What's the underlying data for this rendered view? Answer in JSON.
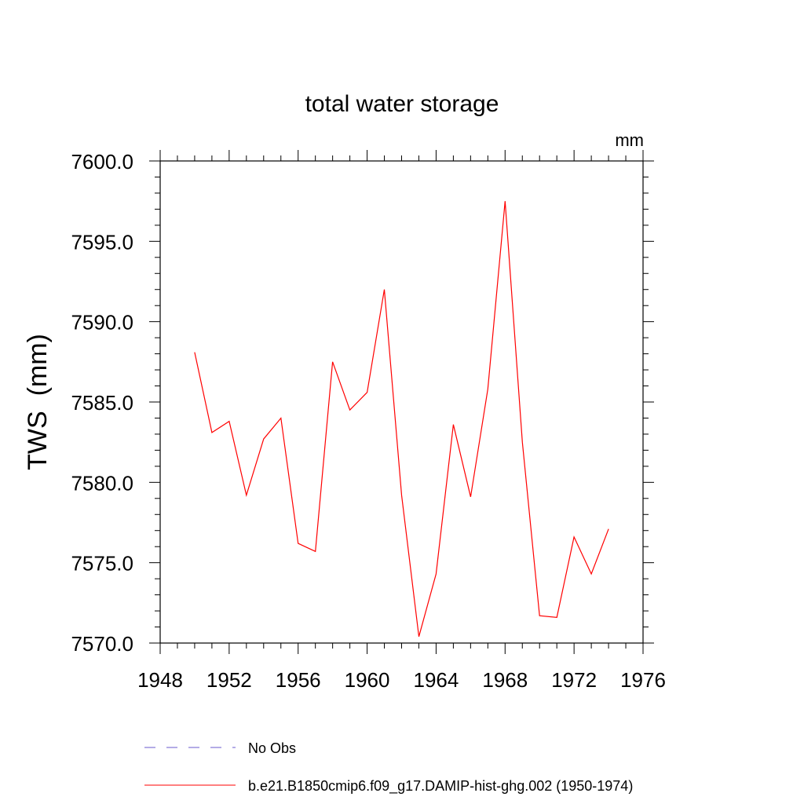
{
  "chart_data": {
    "type": "line",
    "title": "total water storage",
    "units_label": "mm",
    "ylabel": "TWS  (mm)",
    "xlabel": "",
    "xlim": [
      1948,
      1976
    ],
    "ylim": [
      7570.0,
      7600.0
    ],
    "xticks": [
      "1948",
      "1952",
      "1956",
      "1960",
      "1964",
      "1968",
      "1972",
      "1976"
    ],
    "yticks": [
      "7570.0",
      "7575.0",
      "7580.0",
      "7585.0",
      "7590.0",
      "7595.0",
      "7600.0"
    ],
    "grid": false,
    "legend_position": "bottom",
    "series": [
      {
        "name": "No Obs",
        "color": "#6a5acd",
        "dash": "dashed",
        "x": [],
        "y": []
      },
      {
        "name": "b.e21.B1850cmip6.f09_g17.DAMIP-hist-ghg.002 (1950-1974)",
        "color": "#ff0000",
        "dash": "solid",
        "x": [
          1950,
          1951,
          1952,
          1953,
          1954,
          1955,
          1956,
          1957,
          1958,
          1959,
          1960,
          1961,
          1962,
          1963,
          1964,
          1965,
          1966,
          1967,
          1968,
          1969,
          1970,
          1971,
          1972,
          1973,
          1974
        ],
        "y": [
          7588.1,
          7583.1,
          7583.8,
          7579.2,
          7582.7,
          7584.0,
          7576.2,
          7575.7,
          7587.5,
          7584.5,
          7585.6,
          7592.0,
          7579.2,
          7570.4,
          7574.3,
          7583.6,
          7579.1,
          7585.8,
          7597.5,
          7582.5,
          7571.7,
          7571.6,
          7576.6,
          7574.3,
          7577.1
        ]
      }
    ]
  }
}
